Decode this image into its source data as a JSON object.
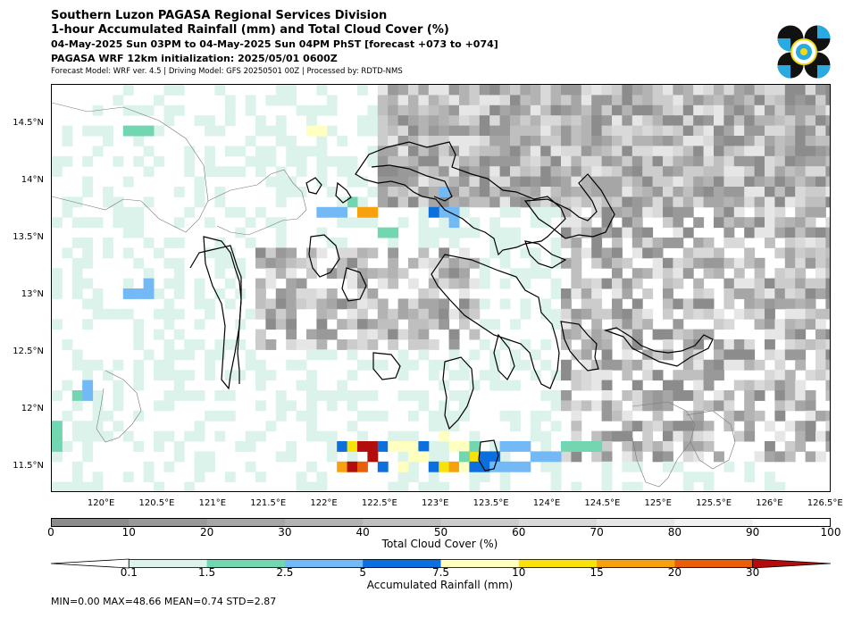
{
  "header": {
    "title1": "Southern Luzon PAGASA Regional Services Division",
    "title2": "1-hour Accumulated Rainfall (mm) and Total Cloud Cover (%)",
    "title3": "04-May-2025 Sun 03PM to 04-May-2025 Sun 04PM PhST [forecast +073 to +074]",
    "title4": "PAGASA WRF 12km initialization: 2025/05/01 0600Z",
    "title5": "Forecast Model: WRF ver. 4.5 | Driving Model: GFS 20250501 00Z | Processed by: RDTD-NMS"
  },
  "logo": {
    "icon": "pagasa-logo-icon",
    "colors": [
      "#111111",
      "#29abe2",
      "#f5d90a"
    ]
  },
  "map": {
    "lat_labels": [
      {
        "label": "14.5°N",
        "value": 14.5
      },
      {
        "label": "14°N",
        "value": 14.0
      },
      {
        "label": "13.5°N",
        "value": 13.5
      },
      {
        "label": "13°N",
        "value": 13.0
      },
      {
        "label": "12.5°N",
        "value": 12.5
      },
      {
        "label": "12°N",
        "value": 12.0
      },
      {
        "label": "11.5°N",
        "value": 11.5
      }
    ],
    "lon_labels": [
      {
        "label": "120°E",
        "value": 120.0
      },
      {
        "label": "120.5°E",
        "value": 120.5
      },
      {
        "label": "121°E",
        "value": 121.0
      },
      {
        "label": "121.5°E",
        "value": 121.5
      },
      {
        "label": "122°E",
        "value": 122.0
      },
      {
        "label": "122.5°E",
        "value": 122.5
      },
      {
        "label": "123°E",
        "value": 123.0
      },
      {
        "label": "123.5°E",
        "value": 123.5
      },
      {
        "label": "124°E",
        "value": 124.0
      },
      {
        "label": "124.5°E",
        "value": 124.5
      },
      {
        "label": "125°E",
        "value": 125.0
      },
      {
        "label": "125.5°E",
        "value": 125.5
      },
      {
        "label": "126°E",
        "value": 126.0
      },
      {
        "label": "126.5°E",
        "value": 126.5
      }
    ],
    "lon_range": [
      119.55,
      126.55
    ],
    "lat_range": [
      11.28,
      14.85
    ]
  },
  "cloud_colorbar": {
    "label": "Total Cloud Cover (%)",
    "ticks": [
      "0",
      "10",
      "20",
      "30",
      "40",
      "50",
      "60",
      "70",
      "80",
      "90",
      "100"
    ],
    "colors": [
      "#8c8c8c",
      "#999999",
      "#a6a6a6",
      "#b3b3b3",
      "#bfbfbf",
      "#cccccc",
      "#d9d9d9",
      "#e6e6e6",
      "#f2f2f2",
      "#ffffff"
    ]
  },
  "rain_colorbar": {
    "label": "Accumulated Rainfall (mm)",
    "ticks": [
      "0.1",
      "1.5",
      "2.5",
      "5",
      "7.5",
      "10",
      "15",
      "20",
      "30"
    ],
    "colors": [
      "#dcf3ec",
      "#72d7b1",
      "#73b9f6",
      "#0b6fde",
      "#ffffc0",
      "#f9e20a",
      "#f6a10d",
      "#ea5d09",
      "#b20c0c"
    ]
  },
  "stats": "MIN=0.00   MAX=48.66   MEAN=0.74   STD=2.87"
}
